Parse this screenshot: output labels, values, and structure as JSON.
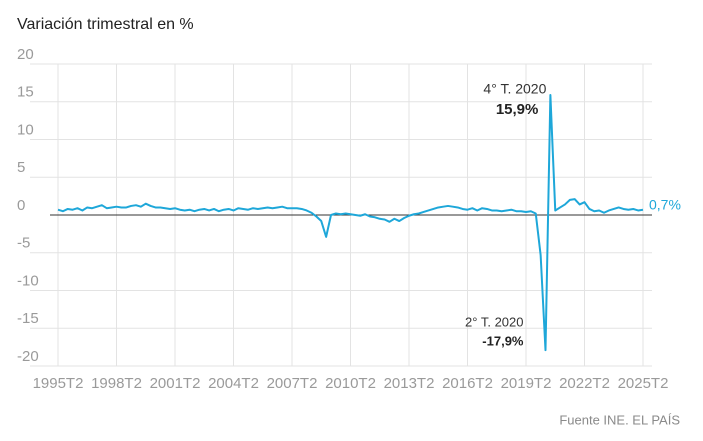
{
  "chart_data": {
    "type": "line",
    "title": "Variación trimestral en %",
    "source": "Fuente INE. EL PAÍS",
    "categories": [
      "1995T2",
      null,
      null,
      null,
      null,
      null,
      null,
      null,
      null,
      null,
      null,
      null,
      "1998T2",
      null,
      null,
      null,
      null,
      null,
      null,
      null,
      null,
      null,
      null,
      null,
      "2001T2",
      null,
      null,
      null,
      null,
      null,
      null,
      null,
      null,
      null,
      null,
      null,
      "2004T2",
      null,
      null,
      null,
      null,
      null,
      null,
      null,
      null,
      null,
      null,
      null,
      "2007T2",
      null,
      null,
      null,
      null,
      null,
      null,
      null,
      null,
      null,
      null,
      null,
      "2010T2",
      null,
      null,
      null,
      null,
      null,
      null,
      null,
      null,
      null,
      null,
      null,
      "2013T2",
      null,
      null,
      null,
      null,
      null,
      null,
      null,
      null,
      null,
      null,
      null,
      "2016T2",
      null,
      null,
      null,
      null,
      null,
      null,
      null,
      null,
      null,
      null,
      null,
      "2019T2",
      null,
      null,
      null,
      null,
      null,
      null,
      null,
      null,
      null,
      null,
      null,
      "2022T2",
      null,
      null,
      null,
      null,
      null,
      null,
      null,
      null,
      null,
      null,
      null,
      "2025T2"
    ],
    "series": [
      {
        "color": "#1ea7d9",
        "values": [
          0.7,
          0.5,
          0.8,
          0.7,
          0.9,
          0.6,
          1.0,
          0.9,
          1.1,
          1.3,
          0.9,
          1.0,
          1.1,
          1.0,
          1.0,
          1.2,
          1.3,
          1.1,
          1.5,
          1.2,
          1.0,
          1.0,
          0.9,
          0.8,
          0.9,
          0.7,
          0.6,
          0.7,
          0.5,
          0.7,
          0.8,
          0.6,
          0.8,
          0.5,
          0.7,
          0.8,
          0.6,
          0.9,
          0.8,
          0.7,
          0.9,
          0.8,
          0.9,
          1.0,
          0.9,
          1.0,
          1.1,
          0.9,
          0.9,
          0.9,
          0.8,
          0.6,
          0.3,
          -0.2,
          -0.8,
          -2.9,
          0.0,
          0.2,
          0.1,
          0.2,
          0.1,
          0.0,
          -0.1,
          0.1,
          -0.2,
          -0.3,
          -0.5,
          -0.6,
          -0.9,
          -0.5,
          -0.8,
          -0.4,
          -0.1,
          0.1,
          0.2,
          0.4,
          0.6,
          0.8,
          1.0,
          1.1,
          1.2,
          1.1,
          1.0,
          0.8,
          0.7,
          0.9,
          0.6,
          0.9,
          0.8,
          0.6,
          0.6,
          0.5,
          0.6,
          0.7,
          0.5,
          0.5,
          0.4,
          0.5,
          0.2,
          -5.3,
          -17.9,
          15.9,
          0.6,
          1.0,
          1.4,
          2.0,
          2.1,
          1.4,
          1.7,
          0.8,
          0.5,
          0.6,
          0.3,
          0.6,
          0.8,
          1.0,
          0.8,
          0.7,
          0.8,
          0.6,
          0.7
        ],
        "value_labels": [
          null,
          null,
          null,
          null,
          null,
          null,
          null,
          null,
          null,
          null,
          null,
          null,
          null,
          null,
          null,
          null,
          null,
          null,
          null,
          null,
          null,
          null,
          null,
          null,
          null,
          null,
          null,
          null,
          null,
          null,
          null,
          null,
          null,
          null,
          null,
          null,
          null,
          null,
          null,
          null,
          null,
          null,
          null,
          null,
          null,
          null,
          null,
          null,
          null,
          null,
          null,
          null,
          null,
          null,
          null,
          null,
          null,
          null,
          null,
          null,
          null,
          null,
          null,
          null,
          null,
          null,
          null,
          null,
          null,
          null,
          null,
          null,
          null,
          null,
          null,
          null,
          null,
          null,
          null,
          null,
          null,
          null,
          null,
          null,
          null,
          null,
          null,
          null,
          null,
          null,
          null,
          null,
          null,
          null,
          null,
          null,
          null,
          null,
          null,
          null,
          "-17,9%",
          "15,9%",
          null,
          null,
          null,
          null,
          null,
          null,
          null,
          null,
          null,
          null,
          null,
          null,
          null,
          null,
          null,
          null,
          null,
          null,
          "0,7%"
        ]
      }
    ],
    "annotations": [
      {
        "text": "4° T. 2020"
      },
      {
        "text": "2° T. 2020"
      }
    ],
    "ylim": [
      -20,
      20
    ],
    "yticks": [
      -20,
      -15,
      -10,
      -5,
      0,
      5,
      10,
      15,
      20
    ],
    "grid": true
  }
}
